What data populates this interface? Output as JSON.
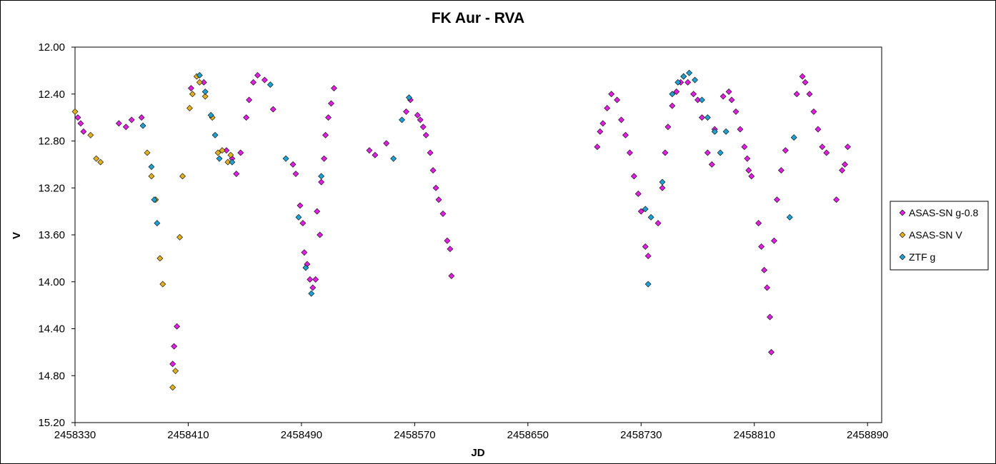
{
  "chart_data": {
    "type": "scatter",
    "title": "FK Aur - RVA",
    "xlabel": "JD",
    "ylabel": "V",
    "xlim": [
      2458330,
      2458900
    ],
    "ylim": [
      12.0,
      15.2
    ],
    "y_inverted": true,
    "grid": false,
    "legend_position": "right",
    "x_ticks": [
      2458330,
      2458410,
      2458490,
      2458570,
      2458650,
      2458730,
      2458810,
      2458890
    ],
    "y_ticks": [
      "12.00",
      "12.40",
      "12.80",
      "13.20",
      "13.60",
      "14.00",
      "14.40",
      "14.80",
      "15.20"
    ],
    "series": [
      {
        "name": "ASAS-SN g-0.8",
        "color": "#e020e0",
        "points": [
          [
            2458332,
            12.6
          ],
          [
            2458334,
            12.65
          ],
          [
            2458336,
            12.72
          ],
          [
            2458361,
            12.65
          ],
          [
            2458366,
            12.68
          ],
          [
            2458370,
            12.62
          ],
          [
            2458377,
            12.6
          ],
          [
            2458400,
            14.55
          ],
          [
            2458402,
            14.38
          ],
          [
            2458399,
            14.7
          ],
          [
            2458412,
            12.35
          ],
          [
            2458421,
            12.3
          ],
          [
            2458437,
            12.88
          ],
          [
            2458441,
            12.95
          ],
          [
            2458444,
            13.08
          ],
          [
            2458447,
            12.9
          ],
          [
            2458451,
            12.6
          ],
          [
            2458453,
            12.45
          ],
          [
            2458456,
            12.3
          ],
          [
            2458459,
            12.24
          ],
          [
            2458464,
            12.28
          ],
          [
            2458470,
            12.53
          ],
          [
            2458484,
            13.0
          ],
          [
            2458486,
            13.08
          ],
          [
            2458489,
            13.35
          ],
          [
            2458491,
            13.5
          ],
          [
            2458492,
            13.75
          ],
          [
            2458494,
            13.85
          ],
          [
            2458496,
            13.98
          ],
          [
            2458498,
            14.05
          ],
          [
            2458500,
            13.98
          ],
          [
            2458501,
            13.4
          ],
          [
            2458503,
            13.6
          ],
          [
            2458504,
            13.15
          ],
          [
            2458506,
            12.95
          ],
          [
            2458507,
            12.75
          ],
          [
            2458509,
            12.6
          ],
          [
            2458511,
            12.48
          ],
          [
            2458513,
            12.35
          ],
          [
            2458538,
            12.88
          ],
          [
            2458542,
            12.92
          ],
          [
            2458550,
            12.82
          ],
          [
            2458564,
            12.55
          ],
          [
            2458567,
            12.45
          ],
          [
            2458572,
            12.58
          ],
          [
            2458574,
            12.62
          ],
          [
            2458576,
            12.68
          ],
          [
            2458578,
            12.75
          ],
          [
            2458581,
            12.9
          ],
          [
            2458583,
            13.05
          ],
          [
            2458585,
            13.2
          ],
          [
            2458587,
            13.3
          ],
          [
            2458590,
            13.42
          ],
          [
            2458593,
            13.65
          ],
          [
            2458595,
            13.72
          ],
          [
            2458596,
            13.95
          ],
          [
            2458699,
            12.85
          ],
          [
            2458701,
            12.72
          ],
          [
            2458703,
            12.65
          ],
          [
            2458706,
            12.52
          ],
          [
            2458709,
            12.4
          ],
          [
            2458713,
            12.45
          ],
          [
            2458716,
            12.62
          ],
          [
            2458719,
            12.75
          ],
          [
            2458722,
            12.9
          ],
          [
            2458725,
            13.1
          ],
          [
            2458728,
            13.25
          ],
          [
            2458730,
            13.4
          ],
          [
            2458733,
            13.7
          ],
          [
            2458735,
            13.78
          ],
          [
            2458742,
            13.5
          ],
          [
            2458745,
            13.2
          ],
          [
            2458747,
            12.9
          ],
          [
            2458749,
            12.68
          ],
          [
            2458752,
            12.5
          ],
          [
            2458755,
            12.38
          ],
          [
            2458758,
            12.3
          ],
          [
            2458760,
            12.25
          ],
          [
            2458763,
            12.3
          ],
          [
            2458767,
            12.4
          ],
          [
            2458770,
            12.45
          ],
          [
            2458773,
            12.6
          ],
          [
            2458777,
            12.9
          ],
          [
            2458780,
            13.0
          ],
          [
            2458782,
            12.7
          ],
          [
            2458788,
            12.42
          ],
          [
            2458792,
            12.38
          ],
          [
            2458794,
            12.45
          ],
          [
            2458797,
            12.55
          ],
          [
            2458800,
            12.7
          ],
          [
            2458803,
            12.85
          ],
          [
            2458805,
            12.95
          ],
          [
            2458806,
            13.05
          ],
          [
            2458808,
            13.1
          ],
          [
            2458813,
            13.5
          ],
          [
            2458815,
            13.7
          ],
          [
            2458817,
            13.9
          ],
          [
            2458819,
            14.05
          ],
          [
            2458821,
            14.3
          ],
          [
            2458822,
            14.6
          ],
          [
            2458824,
            13.65
          ],
          [
            2458826,
            13.3
          ],
          [
            2458829,
            13.05
          ],
          [
            2458832,
            12.88
          ],
          [
            2458840,
            12.4
          ],
          [
            2458844,
            12.25
          ],
          [
            2458846,
            12.3
          ],
          [
            2458849,
            12.4
          ],
          [
            2458852,
            12.55
          ],
          [
            2458855,
            12.7
          ],
          [
            2458858,
            12.85
          ],
          [
            2458861,
            12.9
          ],
          [
            2458868,
            13.3
          ],
          [
            2458872,
            13.05
          ],
          [
            2458874,
            13.0
          ],
          [
            2458876,
            12.85
          ]
        ]
      },
      {
        "name": "ASAS-SN V",
        "color": "#e0b020",
        "points": [
          [
            2458330,
            12.55
          ],
          [
            2458341,
            12.75
          ],
          [
            2458345,
            12.95
          ],
          [
            2458348,
            12.98
          ],
          [
            2458381,
            12.9
          ],
          [
            2458384,
            13.1
          ],
          [
            2458387,
            13.3
          ],
          [
            2458390,
            13.8
          ],
          [
            2458392,
            14.02
          ],
          [
            2458399,
            14.9
          ],
          [
            2458401,
            14.76
          ],
          [
            2458404,
            13.62
          ],
          [
            2458406,
            13.1
          ],
          [
            2458411,
            12.52
          ],
          [
            2458416,
            12.25
          ],
          [
            2458418,
            12.3
          ],
          [
            2458422,
            12.42
          ],
          [
            2458427,
            12.6
          ],
          [
            2458431,
            12.9
          ],
          [
            2458434,
            12.88
          ],
          [
            2458438,
            12.98
          ],
          [
            2458440,
            12.92
          ],
          [
            2458413,
            12.4
          ]
        ]
      },
      {
        "name": "ZTF g",
        "color": "#20a0d0",
        "points": [
          [
            2458378,
            12.67
          ],
          [
            2458384,
            13.02
          ],
          [
            2458386,
            13.3
          ],
          [
            2458388,
            13.5
          ],
          [
            2458418,
            12.24
          ],
          [
            2458422,
            12.38
          ],
          [
            2458426,
            12.58
          ],
          [
            2458429,
            12.75
          ],
          [
            2458432,
            12.95
          ],
          [
            2458441,
            12.98
          ],
          [
            2458468,
            12.32
          ],
          [
            2458479,
            12.95
          ],
          [
            2458488,
            13.45
          ],
          [
            2458493,
            13.88
          ],
          [
            2458497,
            14.1
          ],
          [
            2458504,
            13.1
          ],
          [
            2458555,
            12.95
          ],
          [
            2458561,
            12.62
          ],
          [
            2458566,
            12.43
          ],
          [
            2458752,
            12.4
          ],
          [
            2458756,
            12.3
          ],
          [
            2458760,
            12.25
          ],
          [
            2458764,
            12.22
          ],
          [
            2458768,
            12.28
          ],
          [
            2458773,
            12.45
          ],
          [
            2458777,
            12.6
          ],
          [
            2458782,
            12.72
          ],
          [
            2458786,
            12.9
          ],
          [
            2458790,
            12.72
          ],
          [
            2458737,
            13.45
          ],
          [
            2458735,
            14.02
          ],
          [
            2458745,
            13.15
          ],
          [
            2458733,
            13.38
          ],
          [
            2458835,
            13.45
          ],
          [
            2458838,
            12.77
          ]
        ]
      }
    ]
  }
}
